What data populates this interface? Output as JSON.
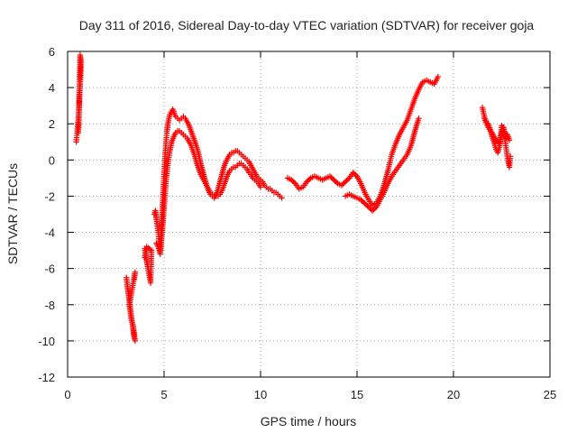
{
  "chart_data": {
    "type": "scatter",
    "title": "Day 311 of 2016, Sidereal Day-to-day VTEC variation (SDTVAR) for receiver goja",
    "xlabel": "GPS time / hours",
    "ylabel": "SDTVAR / TECUs",
    "xlim": [
      0,
      25
    ],
    "ylim": [
      -12,
      6
    ],
    "xticks": [
      0,
      5,
      10,
      15,
      20,
      25
    ],
    "xtick_labels": [
      "0",
      "5",
      "10",
      "15",
      "20",
      "25"
    ],
    "yticks": [
      -12,
      -10,
      -8,
      -6,
      -4,
      -2,
      0,
      2,
      4,
      6
    ],
    "ytick_labels": [
      "-12",
      "-10",
      "-8",
      "-6",
      "-4",
      "-2",
      "0",
      "2",
      "4",
      "6"
    ],
    "grid": true,
    "marker": "+",
    "color": "#ff0000",
    "series": [
      {
        "name": "SDTVAR",
        "segments": [
          {
            "x": [
              0.45,
              0.5,
              0.55,
              0.6,
              0.62,
              0.65,
              0.68,
              0.7,
              0.68,
              0.65,
              0.62,
              0.6,
              0.58,
              0.55
            ],
            "y": [
              1.0,
              1.6,
              2.2,
              3.0,
              3.6,
              4.2,
              4.8,
              5.3,
              5.6,
              5.8,
              4.2,
              3.4,
              2.0,
              1.5
            ]
          },
          {
            "x": [
              3.05,
              3.1,
              3.15,
              3.2,
              3.25,
              3.3,
              3.35,
              3.4,
              3.45,
              3.5,
              3.4,
              3.3,
              3.25,
              3.2,
              3.5,
              3.45
            ],
            "y": [
              -6.5,
              -7.0,
              -7.4,
              -7.8,
              -8.2,
              -8.6,
              -9.0,
              -9.4,
              -9.8,
              -10.0,
              -9.2,
              -8.8,
              -8.4,
              -8.0,
              -6.2,
              -6.6
            ]
          },
          {
            "x": [
              4.0,
              4.05,
              4.1,
              4.15,
              4.2,
              4.25,
              4.3,
              4.35,
              4.1,
              4.0
            ],
            "y": [
              -4.9,
              -5.2,
              -5.6,
              -5.9,
              -6.2,
              -6.5,
              -6.8,
              -5.0,
              -4.8,
              -5.4
            ]
          },
          {
            "x": [
              4.5,
              4.55,
              4.6,
              4.65,
              4.7,
              4.75,
              4.8,
              4.85,
              4.9,
              4.95,
              5.0,
              5.05,
              5.1,
              5.15,
              5.2,
              5.25,
              5.3,
              5.35,
              5.4,
              5.45,
              5.5,
              5.55,
              5.6,
              5.7,
              5.8,
              5.9,
              6.0,
              6.1,
              6.2,
              6.3,
              6.4,
              6.5,
              6.6,
              6.7,
              6.8,
              6.9,
              7.0,
              7.1,
              7.2,
              7.3,
              7.4,
              7.5,
              7.6,
              7.7,
              7.8,
              7.9,
              8.0,
              8.1,
              8.2,
              8.3,
              8.4,
              8.5,
              8.6,
              8.7,
              8.8,
              8.9,
              9.0,
              9.1,
              9.2,
              9.3,
              9.4,
              9.5,
              9.6,
              9.7,
              9.8,
              9.9,
              10.0,
              10.1,
              10.2,
              10.3,
              10.4,
              10.5,
              10.6,
              10.7,
              10.8,
              10.9,
              11.0,
              11.1
            ],
            "y": [
              -3.0,
              -2.8,
              -3.2,
              -3.6,
              -4.0,
              -4.6,
              -5.0,
              -4.2,
              -3.0,
              -1.8,
              -0.8,
              0.2,
              1.0,
              1.6,
              2.0,
              2.3,
              2.5,
              2.6,
              2.7,
              2.8,
              2.7,
              2.5,
              2.4,
              2.3,
              2.2,
              2.3,
              2.4,
              2.3,
              2.1,
              1.9,
              1.6,
              1.3,
              1.0,
              0.7,
              0.3,
              -0.2,
              -0.6,
              -1.0,
              -1.4,
              -1.7,
              -1.9,
              -2.0,
              -2.1,
              -1.9,
              -1.6,
              -1.2,
              -0.8,
              -0.4,
              -0.1,
              0.1,
              0.3,
              0.4,
              0.4,
              0.5,
              0.5,
              0.4,
              0.3,
              0.2,
              0.1,
              0.0,
              -0.1,
              -0.3,
              -0.5,
              -0.7,
              -0.9,
              -1.0,
              -1.1,
              -1.2,
              -1.4,
              -1.5,
              -1.6,
              -1.6,
              -1.7,
              -1.8,
              -1.8,
              -1.9,
              -2.0,
              -2.1
            ]
          },
          {
            "x": [
              4.6,
              4.7,
              4.8,
              4.9,
              5.0,
              5.1,
              5.2,
              5.3,
              5.4,
              5.5,
              5.6,
              5.7,
              5.8,
              5.9,
              6.0,
              6.1,
              6.2,
              6.3,
              6.4,
              6.5,
              6.6,
              6.7,
              6.8,
              6.9,
              7.0,
              7.1,
              7.2,
              7.3,
              7.4,
              7.5,
              7.6,
              7.7,
              7.8,
              7.9,
              8.0,
              8.1,
              8.2,
              8.3,
              8.4,
              8.5,
              8.6,
              8.7,
              8.8,
              8.9,
              9.0,
              9.1,
              9.2,
              9.3,
              9.4,
              9.5,
              9.6,
              9.7,
              9.8,
              9.9,
              10.0
            ],
            "y": [
              -4.6,
              -4.8,
              -5.2,
              -4.0,
              -2.6,
              -1.2,
              -0.2,
              0.5,
              1.0,
              1.3,
              1.5,
              1.6,
              1.6,
              1.5,
              1.4,
              1.3,
              1.2,
              1.0,
              0.8,
              0.5,
              0.2,
              -0.2,
              -0.5,
              -0.8,
              -1.0,
              -1.2,
              -1.4,
              -1.6,
              -1.8,
              -1.9,
              -2.0,
              -2.0,
              -2.0,
              -1.9,
              -1.7,
              -1.4,
              -1.1,
              -0.8,
              -0.6,
              -0.5,
              -0.4,
              -0.4,
              -0.3,
              -0.2,
              -0.2,
              -0.3,
              -0.4,
              -0.5,
              -0.7,
              -0.8,
              -1.0,
              -1.1,
              -1.2,
              -1.3,
              -1.5
            ]
          },
          {
            "x": [
              11.4,
              11.6,
              11.8,
              12.0,
              12.2,
              12.4,
              12.6,
              12.8,
              13.0,
              13.2,
              13.4,
              13.6,
              13.8,
              14.0,
              14.2,
              14.4,
              14.6,
              14.8,
              15.0,
              15.2,
              15.4,
              15.6,
              15.8,
              16.0,
              16.2,
              16.4,
              16.6,
              16.8,
              17.0,
              17.2,
              17.4,
              17.6,
              17.8,
              18.0,
              18.2,
              18.4,
              18.6,
              18.8,
              19.0,
              19.2
            ],
            "y": [
              -1.0,
              -1.1,
              -1.3,
              -1.6,
              -1.5,
              -1.2,
              -1.0,
              -0.9,
              -1.0,
              -1.1,
              -1.0,
              -0.9,
              -1.1,
              -1.3,
              -1.4,
              -1.2,
              -1.0,
              -0.7,
              -0.9,
              -1.3,
              -1.8,
              -2.2,
              -2.5,
              -2.4,
              -2.0,
              -1.4,
              -0.6,
              0.3,
              0.9,
              1.4,
              1.8,
              2.2,
              2.8,
              3.4,
              3.9,
              4.3,
              4.4,
              4.3,
              4.2,
              4.6
            ]
          },
          {
            "x": [
              14.4,
              14.6,
              14.8,
              15.0,
              15.2,
              15.4,
              15.6,
              15.8,
              16.0,
              16.2,
              16.4,
              16.6,
              16.8,
              17.0,
              17.2,
              17.4,
              17.6,
              17.8,
              18.0,
              18.2
            ],
            "y": [
              -2.0,
              -1.9,
              -2.0,
              -2.1,
              -2.2,
              -2.4,
              -2.6,
              -2.8,
              -2.6,
              -2.2,
              -1.8,
              -1.3,
              -0.9,
              -0.6,
              -0.3,
              0.0,
              0.3,
              0.8,
              1.6,
              2.3
            ]
          },
          {
            "x": [
              21.5,
              21.6,
              21.7,
              21.8,
              21.9,
              22.0,
              22.1,
              22.2,
              22.3,
              22.4,
              22.5,
              22.6,
              22.7,
              22.8,
              22.9,
              22.95
            ],
            "y": [
              2.9,
              2.4,
              2.1,
              2.0,
              1.7,
              1.3,
              1.0,
              0.6,
              0.4,
              0.8,
              1.5,
              1.8,
              0.9,
              0.1,
              -0.4,
              0.2
            ]
          },
          {
            "x": [
              21.6,
              21.8,
              22.0,
              22.2,
              22.4,
              22.5,
              22.6,
              22.7,
              22.8,
              22.9
            ],
            "y": [
              2.3,
              1.8,
              1.5,
              1.1,
              0.9,
              1.9,
              1.7,
              1.2,
              1.4,
              1.1
            ]
          }
        ]
      }
    ]
  }
}
